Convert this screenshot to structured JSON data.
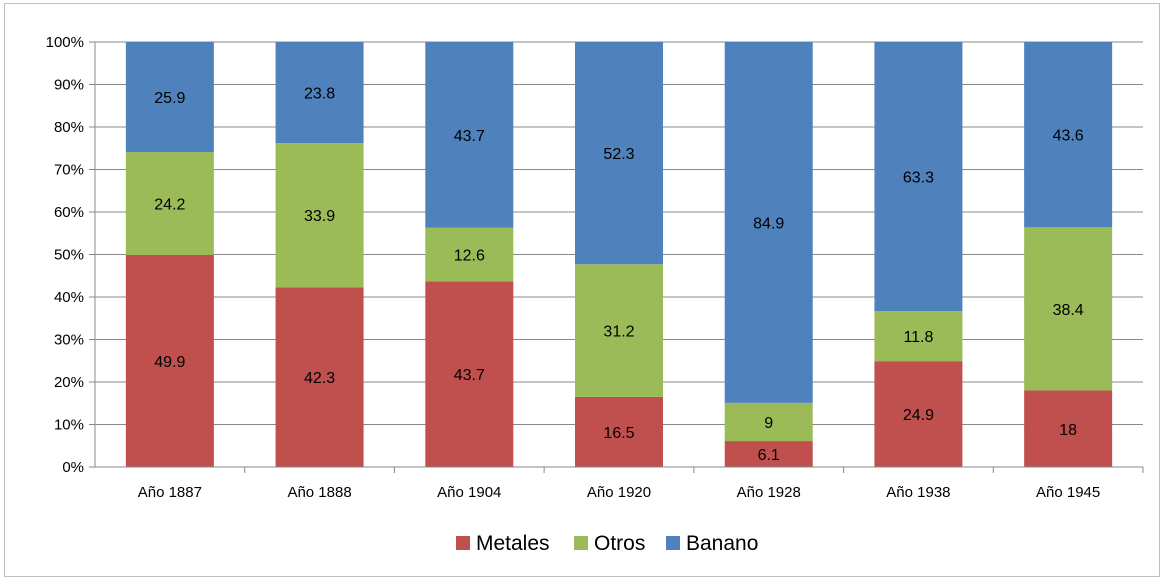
{
  "chart_data": {
    "type": "bar",
    "stacked": "percent",
    "categories": [
      "Año 1887",
      "Año 1888",
      "Año 1904",
      "Año 1920",
      "Año 1928",
      "Año 1938",
      "Año 1945"
    ],
    "series": [
      {
        "name": "Metales",
        "color": "#c0504d",
        "values": [
          49.9,
          42.3,
          43.7,
          16.5,
          6.1,
          24.9,
          18
        ]
      },
      {
        "name": "Otros",
        "color": "#9bbb59",
        "values": [
          24.2,
          33.9,
          12.6,
          31.2,
          9,
          11.8,
          38.4
        ]
      },
      {
        "name": "Banano",
        "color": "#4f81bd",
        "values": [
          25.9,
          23.8,
          43.7,
          52.3,
          84.9,
          63.3,
          43.6
        ]
      }
    ],
    "yticks": [
      "0%",
      "10%",
      "20%",
      "30%",
      "40%",
      "50%",
      "60%",
      "70%",
      "80%",
      "90%",
      "100%"
    ],
    "ylim": [
      0,
      100
    ],
    "grid": true,
    "legend_position": "bottom",
    "title": "",
    "xlabel": "",
    "ylabel": ""
  }
}
